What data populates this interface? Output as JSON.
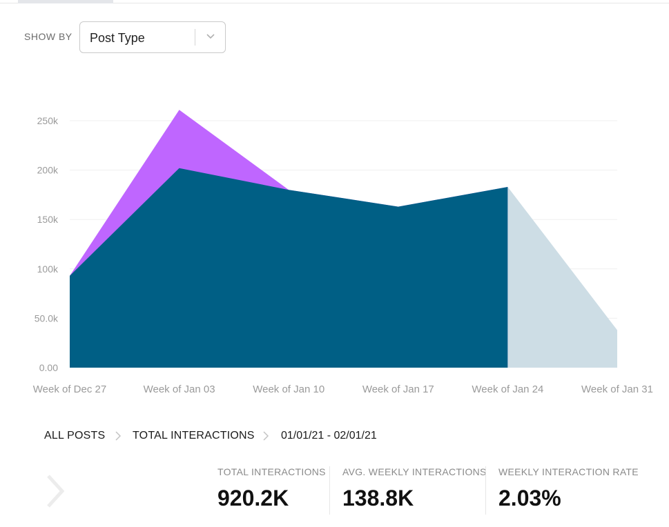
{
  "filter": {
    "label": "SHOW BY",
    "selected": "Post Type"
  },
  "chart_data": {
    "type": "area",
    "categories": [
      "Week of Dec 27",
      "Week of Jan 03",
      "Week of Jan 10",
      "Week of Jan 17",
      "Week of Jan 24",
      "Week of Jan 31"
    ],
    "series": [
      {
        "values": [
          93000,
          261000,
          180000,
          163000,
          183000,
          null
        ],
        "color": "#bf66ff"
      },
      {
        "values": [
          93000,
          202000,
          180000,
          163000,
          183000,
          null
        ],
        "color": "#005f85"
      },
      {
        "values": [
          null,
          null,
          null,
          null,
          183000,
          38000
        ],
        "color": "#cddde5"
      }
    ],
    "y_ticks": [
      "0.00",
      "50.0k",
      "100k",
      "150k",
      "200k",
      "250k"
    ],
    "ylim": [
      0,
      250000
    ],
    "grid": true,
    "title": "",
    "xlabel": "",
    "ylabel": ""
  },
  "breadcrumb": {
    "items": [
      "ALL POSTS",
      "TOTAL INTERACTIONS"
    ],
    "date_range": "01/01/21 - 02/01/21"
  },
  "stats": [
    {
      "label": "TOTAL INTERACTIONS",
      "value": "920.2K"
    },
    {
      "label": "AVG. WEEKLY INTERACTIONS",
      "value": "138.8K"
    },
    {
      "label": "WEEKLY INTERACTION RATE",
      "value": "2.03%"
    }
  ],
  "icons": {
    "dropdown": "chevron-down-icon",
    "breadcrumb_separator": "chevron-right-icon",
    "navigate": "chevron-right-icon"
  }
}
